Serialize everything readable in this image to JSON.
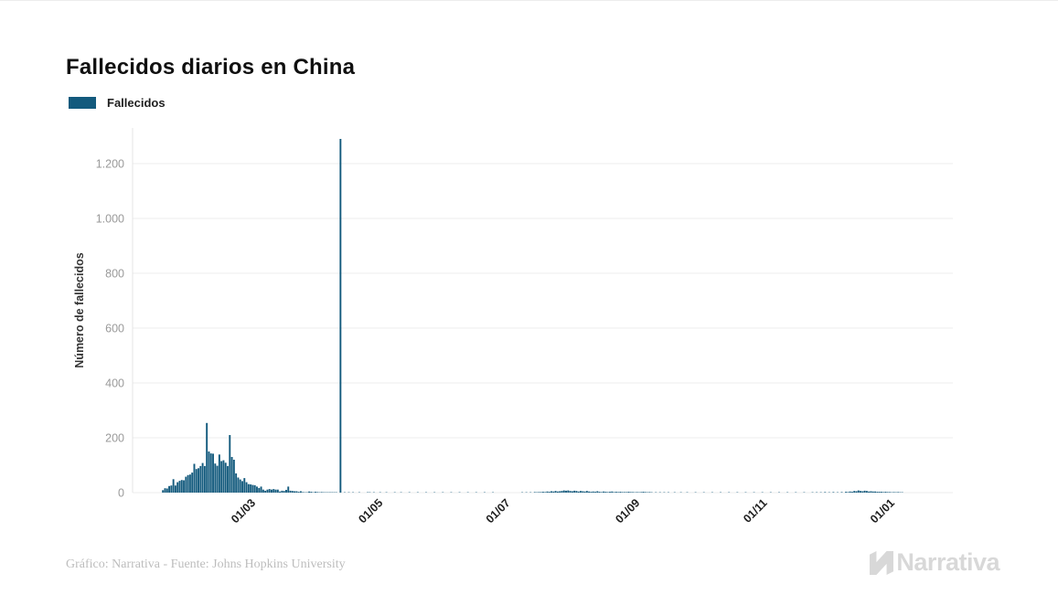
{
  "page": {
    "title": "Fallecidos diarios en China",
    "footer_credit": "Gráfico: Narrativa - Fuente: Johns Hopkins University",
    "brand": "Narrativa"
  },
  "legend": {
    "label": "Fallecidos",
    "color": "#135a7d"
  },
  "chart_data": {
    "type": "bar",
    "title": "Fallecidos diarios en China",
    "series_name": "Fallecidos",
    "xlabel": "",
    "ylabel": "Número de fallecidos",
    "ylim": [
      0,
      1290
    ],
    "bar_color": "#135a7d",
    "grid": "horizontal-only",
    "grid_color": "#ececec",
    "axis_line_color": "#e4e4e4",
    "ytick_color": "#9a9a9a",
    "xtick_color": "#1f1f1f",
    "yticks": [
      0,
      200,
      400,
      600,
      800,
      1000,
      1200
    ],
    "ytick_labels": [
      "0",
      "200",
      "400",
      "600",
      "800",
      "1.000",
      "1.200"
    ],
    "xticks": [
      {
        "date": "2020-03-01",
        "label": "01/03"
      },
      {
        "date": "2020-05-01",
        "label": "01/05"
      },
      {
        "date": "2020-07-01",
        "label": "01/07"
      },
      {
        "date": "2020-09-01",
        "label": "01/09"
      },
      {
        "date": "2020-11-01",
        "label": "01/11"
      },
      {
        "date": "2021-01-01",
        "label": "01/01"
      }
    ],
    "date_range": [
      "2020-01-20",
      "2021-01-16"
    ],
    "max_point": {
      "date": "2020-04-17",
      "value": 1290
    },
    "points": [
      [
        "2020-01-23",
        9
      ],
      [
        "2020-01-24",
        16
      ],
      [
        "2020-01-25",
        15
      ],
      [
        "2020-01-26",
        24
      ],
      [
        "2020-01-27",
        26
      ],
      [
        "2020-01-28",
        49
      ],
      [
        "2020-01-29",
        26
      ],
      [
        "2020-01-30",
        38
      ],
      [
        "2020-01-31",
        43
      ],
      [
        "2020-02-01",
        46
      ],
      [
        "2020-02-02",
        45
      ],
      [
        "2020-02-03",
        58
      ],
      [
        "2020-02-04",
        64
      ],
      [
        "2020-02-05",
        66
      ],
      [
        "2020-02-06",
        73
      ],
      [
        "2020-02-07",
        105
      ],
      [
        "2020-02-08",
        86
      ],
      [
        "2020-02-09",
        89
      ],
      [
        "2020-02-10",
        97
      ],
      [
        "2020-02-11",
        108
      ],
      [
        "2020-02-12",
        97
      ],
      [
        "2020-02-13",
        254
      ],
      [
        "2020-02-14",
        150
      ],
      [
        "2020-02-15",
        143
      ],
      [
        "2020-02-16",
        142
      ],
      [
        "2020-02-17",
        106
      ],
      [
        "2020-02-18",
        98
      ],
      [
        "2020-02-19",
        139
      ],
      [
        "2020-02-20",
        115
      ],
      [
        "2020-02-21",
        118
      ],
      [
        "2020-02-22",
        109
      ],
      [
        "2020-02-23",
        97
      ],
      [
        "2020-02-24",
        210
      ],
      [
        "2020-02-25",
        130
      ],
      [
        "2020-02-26",
        120
      ],
      [
        "2020-02-27",
        70
      ],
      [
        "2020-02-28",
        55
      ],
      [
        "2020-02-29",
        48
      ],
      [
        "2020-03-01",
        42
      ],
      [
        "2020-03-02",
        53
      ],
      [
        "2020-03-03",
        38
      ],
      [
        "2020-03-04",
        31
      ],
      [
        "2020-03-05",
        30
      ],
      [
        "2020-03-06",
        28
      ],
      [
        "2020-03-07",
        27
      ],
      [
        "2020-03-08",
        22
      ],
      [
        "2020-03-09",
        17
      ],
      [
        "2020-03-10",
        22
      ],
      [
        "2020-03-11",
        11
      ],
      [
        "2020-03-12",
        7
      ],
      [
        "2020-03-13",
        11
      ],
      [
        "2020-03-14",
        13
      ],
      [
        "2020-03-15",
        11
      ],
      [
        "2020-03-16",
        13
      ],
      [
        "2020-03-17",
        11
      ],
      [
        "2020-03-18",
        11
      ],
      [
        "2020-03-19",
        4
      ],
      [
        "2020-03-20",
        7
      ],
      [
        "2020-03-21",
        6
      ],
      [
        "2020-03-22",
        10
      ],
      [
        "2020-03-23",
        22
      ],
      [
        "2020-03-24",
        7
      ],
      [
        "2020-03-25",
        6
      ],
      [
        "2020-03-26",
        5
      ],
      [
        "2020-03-27",
        5
      ],
      [
        "2020-03-28",
        3
      ],
      [
        "2020-03-29",
        5
      ],
      [
        "2020-03-30",
        2
      ],
      [
        "2020-03-31",
        1
      ],
      [
        "2020-04-01",
        1
      ],
      [
        "2020-04-02",
        4
      ],
      [
        "2020-04-03",
        3
      ],
      [
        "2020-04-04",
        1
      ],
      [
        "2020-04-05",
        3
      ],
      [
        "2020-04-06",
        2
      ],
      [
        "2020-04-07",
        1
      ],
      [
        "2020-04-08",
        2
      ],
      [
        "2020-04-09",
        1
      ],
      [
        "2020-04-10",
        1
      ],
      [
        "2020-04-11",
        1
      ],
      [
        "2020-04-12",
        1
      ],
      [
        "2020-04-13",
        1
      ],
      [
        "2020-04-14",
        1
      ],
      [
        "2020-04-15",
        1
      ],
      [
        "2020-04-17",
        1290
      ],
      [
        "2020-04-19",
        1
      ],
      [
        "2020-04-21",
        1
      ],
      [
        "2020-04-23",
        1
      ],
      [
        "2020-04-26",
        1
      ],
      [
        "2020-04-30",
        1
      ],
      [
        "2020-05-01",
        1
      ],
      [
        "2020-05-03",
        1
      ],
      [
        "2020-05-06",
        1
      ],
      [
        "2020-05-09",
        1
      ],
      [
        "2020-05-13",
        1
      ],
      [
        "2020-05-16",
        1
      ],
      [
        "2020-05-20",
        1
      ],
      [
        "2020-05-24",
        1
      ],
      [
        "2020-05-28",
        1
      ],
      [
        "2020-06-01",
        1
      ],
      [
        "2020-06-05",
        1
      ],
      [
        "2020-06-09",
        1
      ],
      [
        "2020-06-13",
        1
      ],
      [
        "2020-06-17",
        1
      ],
      [
        "2020-06-21",
        1
      ],
      [
        "2020-06-25",
        1
      ],
      [
        "2020-06-29",
        1
      ],
      [
        "2020-07-13",
        1
      ],
      [
        "2020-07-15",
        1
      ],
      [
        "2020-07-17",
        1
      ],
      [
        "2020-07-19",
        2
      ],
      [
        "2020-07-20",
        1
      ],
      [
        "2020-07-21",
        2
      ],
      [
        "2020-07-22",
        2
      ],
      [
        "2020-07-23",
        3
      ],
      [
        "2020-07-24",
        2
      ],
      [
        "2020-07-25",
        4
      ],
      [
        "2020-07-26",
        3
      ],
      [
        "2020-07-27",
        5
      ],
      [
        "2020-07-28",
        4
      ],
      [
        "2020-07-29",
        6
      ],
      [
        "2020-07-30",
        4
      ],
      [
        "2020-07-31",
        5
      ],
      [
        "2020-08-01",
        6
      ],
      [
        "2020-08-02",
        8
      ],
      [
        "2020-08-03",
        7
      ],
      [
        "2020-08-04",
        8
      ],
      [
        "2020-08-05",
        6
      ],
      [
        "2020-08-06",
        5
      ],
      [
        "2020-08-07",
        7
      ],
      [
        "2020-08-08",
        6
      ],
      [
        "2020-08-09",
        4
      ],
      [
        "2020-08-10",
        6
      ],
      [
        "2020-08-11",
        5
      ],
      [
        "2020-08-12",
        4
      ],
      [
        "2020-08-13",
        6
      ],
      [
        "2020-08-14",
        4
      ],
      [
        "2020-08-15",
        3
      ],
      [
        "2020-08-16",
        4
      ],
      [
        "2020-08-17",
        3
      ],
      [
        "2020-08-18",
        5
      ],
      [
        "2020-08-19",
        3
      ],
      [
        "2020-08-20",
        2
      ],
      [
        "2020-08-21",
        4
      ],
      [
        "2020-08-22",
        3
      ],
      [
        "2020-08-23",
        2
      ],
      [
        "2020-08-24",
        3
      ],
      [
        "2020-08-25",
        4
      ],
      [
        "2020-08-26",
        2
      ],
      [
        "2020-08-27",
        3
      ],
      [
        "2020-08-28",
        2
      ],
      [
        "2020-08-29",
        3
      ],
      [
        "2020-08-30",
        2
      ],
      [
        "2020-08-31",
        2
      ],
      [
        "2020-09-01",
        2
      ],
      [
        "2020-09-02",
        3
      ],
      [
        "2020-09-03",
        2
      ],
      [
        "2020-09-04",
        2
      ],
      [
        "2020-09-05",
        1
      ],
      [
        "2020-09-06",
        2
      ],
      [
        "2020-09-07",
        1
      ],
      [
        "2020-09-08",
        2
      ],
      [
        "2020-09-09",
        3
      ],
      [
        "2020-09-10",
        2
      ],
      [
        "2020-09-11",
        1
      ],
      [
        "2020-09-12",
        2
      ],
      [
        "2020-09-13",
        1
      ],
      [
        "2020-09-15",
        1
      ],
      [
        "2020-09-17",
        1
      ],
      [
        "2020-09-19",
        1
      ],
      [
        "2020-09-21",
        1
      ],
      [
        "2020-09-24",
        1
      ],
      [
        "2020-09-27",
        1
      ],
      [
        "2020-09-30",
        1
      ],
      [
        "2020-10-04",
        1
      ],
      [
        "2020-10-08",
        1
      ],
      [
        "2020-10-12",
        1
      ],
      [
        "2020-10-16",
        1
      ],
      [
        "2020-10-20",
        1
      ],
      [
        "2020-10-24",
        1
      ],
      [
        "2020-10-28",
        1
      ],
      [
        "2020-11-01",
        1
      ],
      [
        "2020-11-05",
        1
      ],
      [
        "2020-11-09",
        1
      ],
      [
        "2020-11-13",
        1
      ],
      [
        "2020-11-17",
        1
      ],
      [
        "2020-11-21",
        1
      ],
      [
        "2020-11-25",
        1
      ],
      [
        "2020-11-29",
        1
      ],
      [
        "2020-12-01",
        1
      ],
      [
        "2020-12-03",
        1
      ],
      [
        "2020-12-05",
        2
      ],
      [
        "2020-12-07",
        1
      ],
      [
        "2020-12-09",
        2
      ],
      [
        "2020-12-11",
        1
      ],
      [
        "2020-12-13",
        2
      ],
      [
        "2020-12-15",
        3
      ],
      [
        "2020-12-16",
        2
      ],
      [
        "2020-12-17",
        4
      ],
      [
        "2020-12-18",
        3
      ],
      [
        "2020-12-19",
        6
      ],
      [
        "2020-12-20",
        5
      ],
      [
        "2020-12-21",
        8
      ],
      [
        "2020-12-22",
        6
      ],
      [
        "2020-12-23",
        5
      ],
      [
        "2020-12-24",
        7
      ],
      [
        "2020-12-25",
        6
      ],
      [
        "2020-12-26",
        4
      ],
      [
        "2020-12-27",
        5
      ],
      [
        "2020-12-28",
        4
      ],
      [
        "2020-12-29",
        4
      ],
      [
        "2020-12-30",
        3
      ],
      [
        "2020-12-31",
        3
      ],
      [
        "2021-01-01",
        3
      ],
      [
        "2021-01-02",
        2
      ],
      [
        "2021-01-03",
        3
      ],
      [
        "2021-01-04",
        2
      ],
      [
        "2021-01-05",
        2
      ],
      [
        "2021-01-06",
        1
      ],
      [
        "2021-01-07",
        2
      ],
      [
        "2021-01-08",
        1
      ],
      [
        "2021-01-09",
        2
      ],
      [
        "2021-01-10",
        1
      ],
      [
        "2021-01-11",
        1
      ]
    ]
  }
}
